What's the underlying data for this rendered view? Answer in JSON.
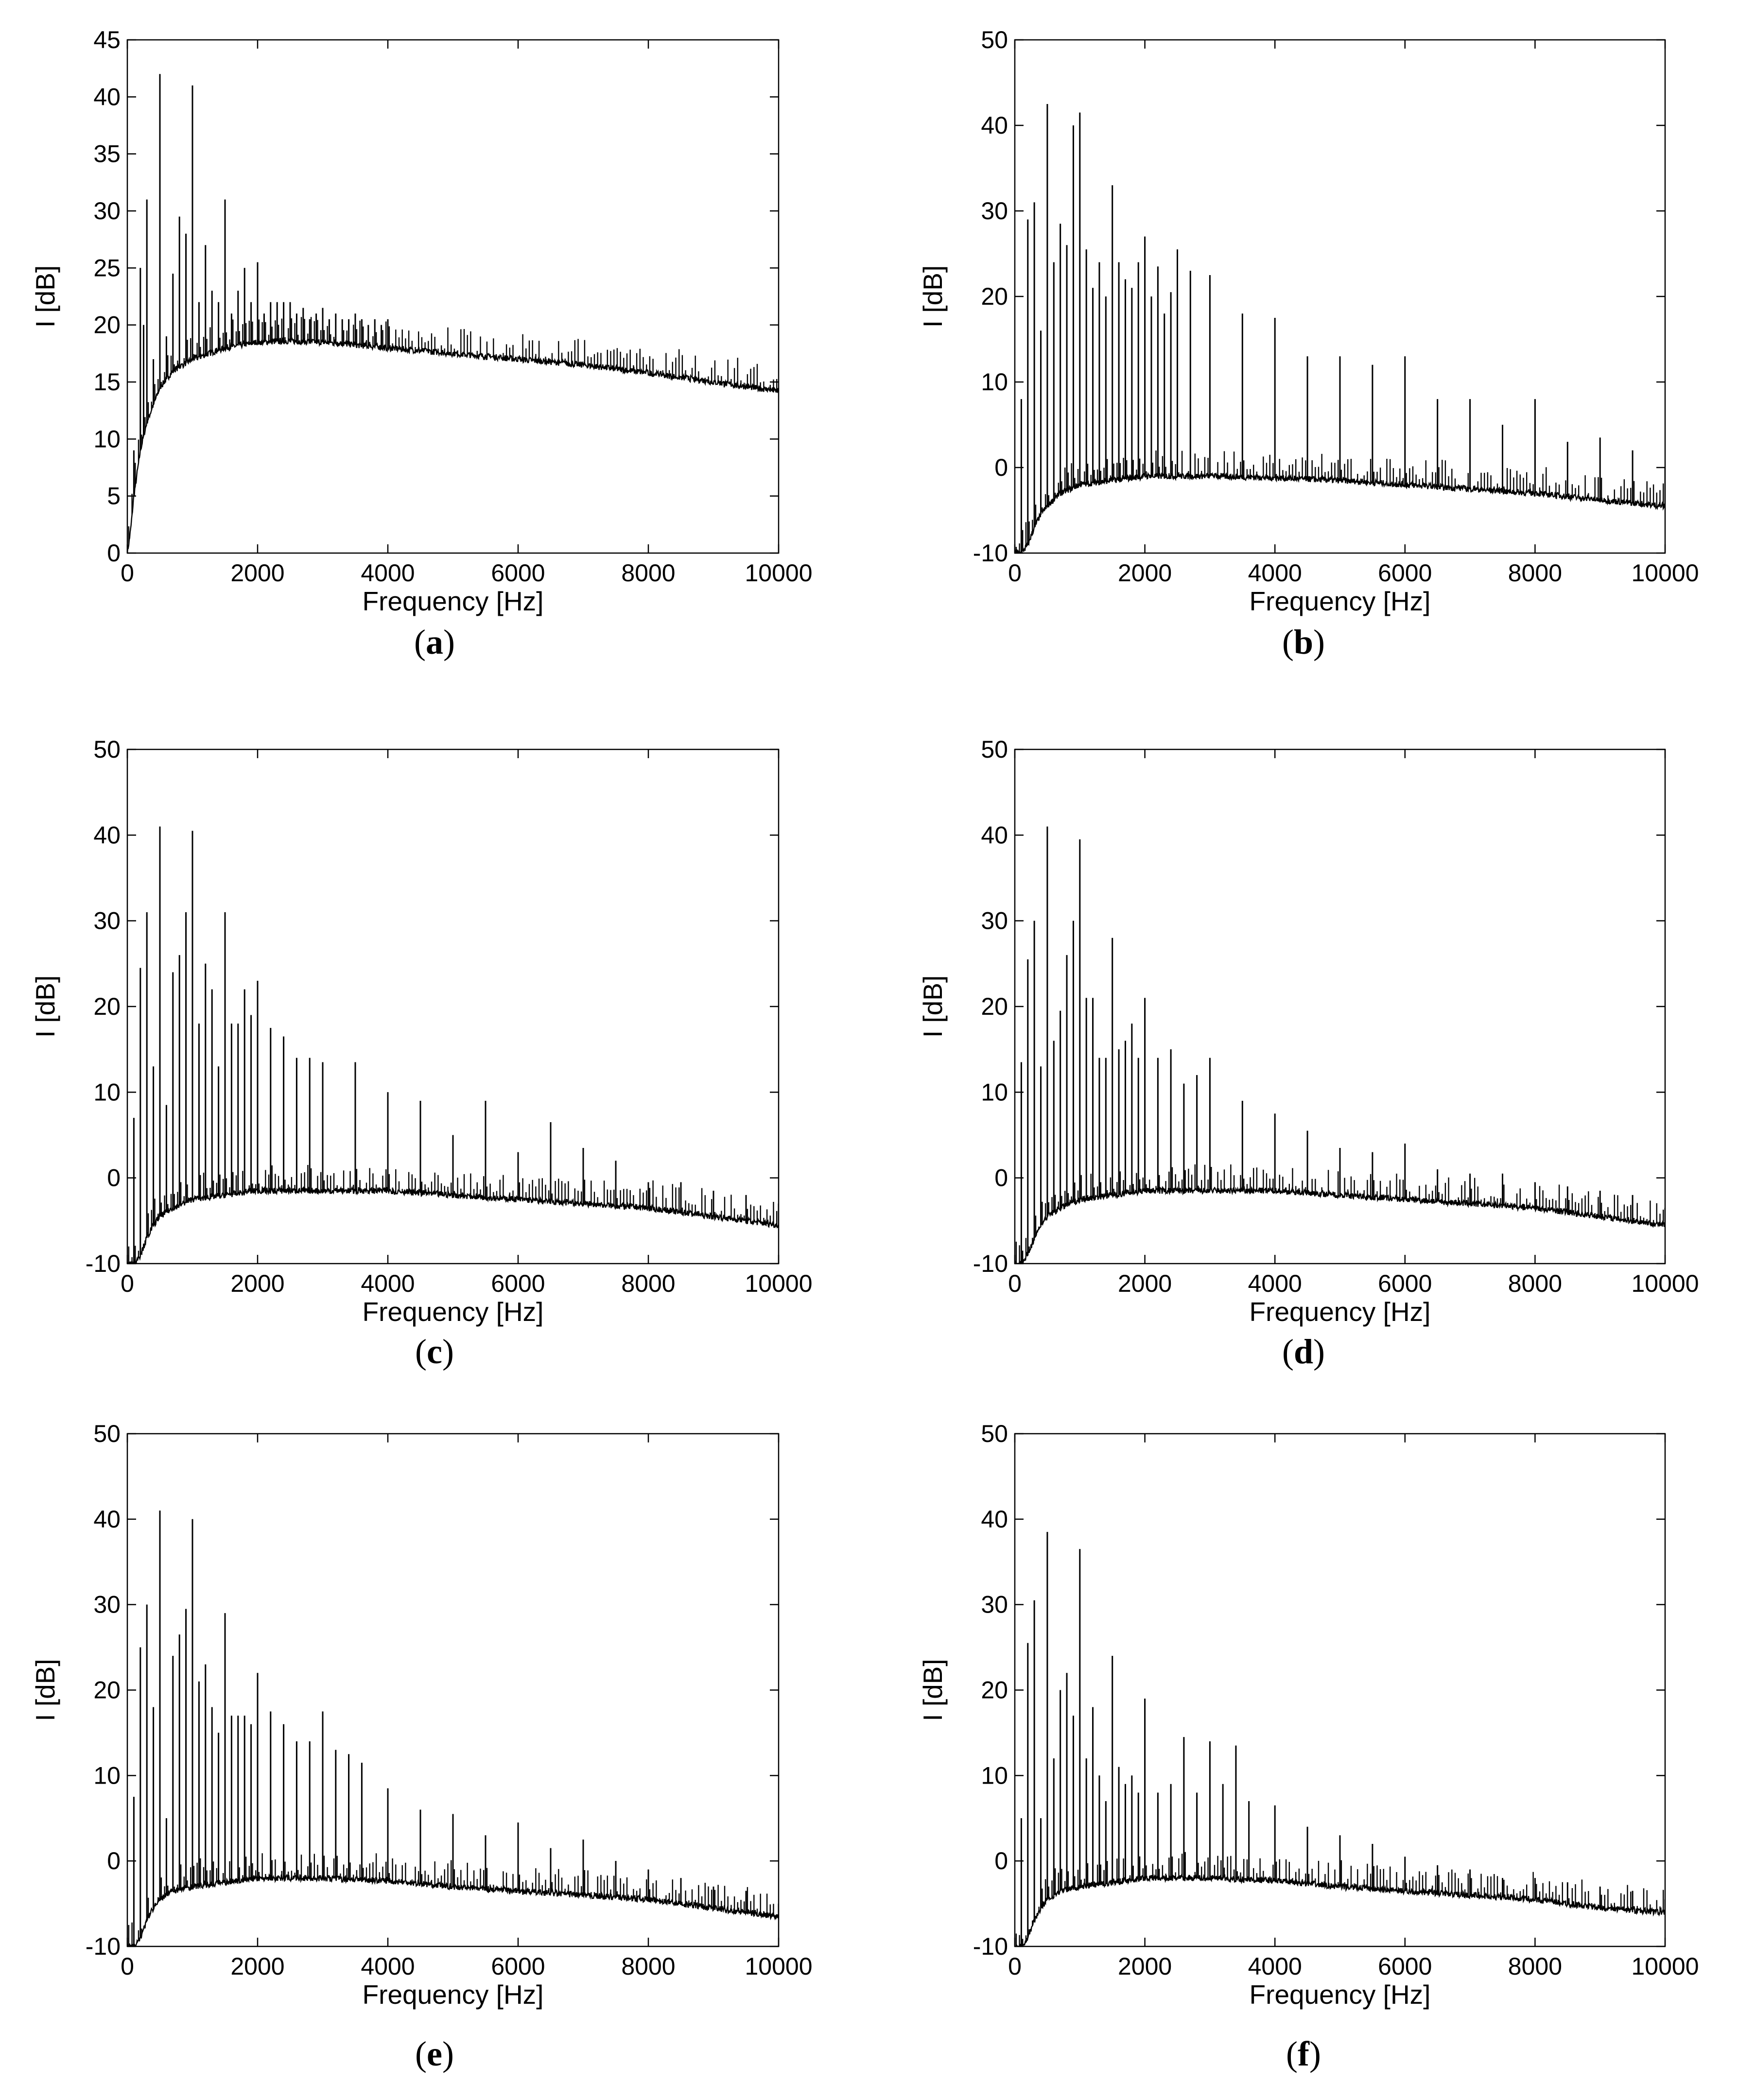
{
  "figure": {
    "panels": [
      {
        "caption_open": "(",
        "caption_letter": "a",
        "caption_close": ")"
      },
      {
        "caption_open": "(",
        "caption_letter": "b",
        "caption_close": ")"
      },
      {
        "caption_open": "(",
        "caption_letter": "c",
        "caption_close": ")"
      },
      {
        "caption_open": "(",
        "caption_letter": "d",
        "caption_close": ")"
      },
      {
        "caption_open": "(",
        "caption_letter": "e",
        "caption_close": ")"
      },
      {
        "caption_open": "(",
        "caption_letter": "f",
        "caption_close": ")"
      }
    ]
  },
  "chart_data": [
    {
      "type": "line",
      "xlabel": "Frequency [Hz]",
      "ylabel": "I [dB]",
      "xlim": [
        0,
        10000
      ],
      "ylim": [
        0,
        45
      ],
      "xticks": [
        0,
        2000,
        4000,
        6000,
        8000,
        10000
      ],
      "yticks": [
        0,
        5,
        10,
        15,
        20,
        25,
        30,
        35,
        40,
        45
      ],
      "grid": false,
      "series": [
        {
          "color": "#000000",
          "noise_floor": {
            "x": [
              0,
              50,
              100,
              150,
              200,
              300,
              400,
              500,
              700,
              1000,
              1500,
              2000,
              2500,
              3000,
              4000,
              5000,
              6000,
              7000,
              8000,
              9000,
              10000
            ],
            "y": [
              0,
              2,
              5,
              7,
              9,
              11.5,
              13,
              14.5,
              16,
              17,
              18,
              18.5,
              18.6,
              18.5,
              18,
              17.5,
              17,
              16.5,
              15.8,
              15,
              14.2
            ]
          },
          "peaks": {
            "x": [
              100,
              200,
              250,
              300,
              400,
              500,
              600,
              700,
              800,
              900,
              1000,
              1100,
              1200,
              1300,
              1400,
              1500,
              1600,
              1700,
              1800,
              1900,
              2000,
              2100,
              2200,
              2300,
              2400,
              2500,
              2600,
              2700,
              2800,
              2900,
              3000,
              3100,
              3200,
              3300,
              3400,
              3500,
              3600,
              3700,
              3800,
              3900,
              4000
            ],
            "y": [
              9,
              25,
              20,
              31,
              17,
              42,
              19,
              24.5,
              29.5,
              28,
              41,
              22,
              27,
              23,
              22,
              31,
              21,
              23,
              25,
              22,
              25.5,
              21,
              22,
              22,
              22,
              22,
              21,
              21.5,
              20.5,
              21,
              21.5,
              20.5,
              21,
              20.5,
              20.5,
              21,
              20.5,
              20,
              20.5,
              20,
              20.5
            ]
          }
        }
      ]
    },
    {
      "type": "line",
      "xlabel": "Frequency [Hz]",
      "ylabel": "I [dB]",
      "xlim": [
        0,
        10000
      ],
      "ylim": [
        -10,
        50
      ],
      "xticks": [
        0,
        2000,
        4000,
        6000,
        8000,
        10000
      ],
      "yticks": [
        -10,
        0,
        10,
        20,
        30,
        40,
        50
      ],
      "grid": false,
      "series": [
        {
          "color": "#000000",
          "noise_floor": {
            "x": [
              0,
              100,
              200,
              300,
              400,
              500,
              700,
              1000,
              1500,
              2000,
              2500,
              3000,
              4000,
              5000,
              6000,
              7000,
              8000,
              9000,
              10000
            ],
            "y": [
              -10,
              -10,
              -9,
              -7,
              -5.5,
              -4.5,
              -3,
              -2,
              -1.5,
              -1,
              -1,
              -1,
              -1.2,
              -1.5,
              -2,
              -2.5,
              -3,
              -3.8,
              -4.5
            ]
          },
          "peaks": {
            "x": [
              100,
              200,
              300,
              400,
              500,
              600,
              700,
              800,
              900,
              1000,
              1100,
              1200,
              1300,
              1400,
              1500,
              1600,
              1700,
              1800,
              1900,
              2000,
              2100,
              2200,
              2300,
              2400,
              2500,
              2700,
              3000,
              3500,
              4000,
              4500,
              5000,
              5500,
              6000,
              6500,
              7000,
              7500,
              8000,
              8500,
              9000,
              9500,
              10000
            ],
            "y": [
              8,
              29,
              31,
              16,
              42.5,
              24,
              28.5,
              26,
              40,
              41.5,
              25.5,
              21,
              24,
              20,
              33,
              24,
              22,
              21,
              24,
              27,
              20,
              23.5,
              18,
              20.5,
              25.5,
              23,
              22.5,
              18,
              17.5,
              13,
              13,
              12,
              13,
              8,
              8,
              5,
              8,
              3,
              3.5,
              2,
              0
            ]
          }
        }
      ]
    },
    {
      "type": "line",
      "xlabel": "Frequency [Hz]",
      "ylabel": "I [dB]",
      "xlim": [
        0,
        10000
      ],
      "ylim": [
        -10,
        50
      ],
      "xticks": [
        0,
        2000,
        4000,
        6000,
        8000,
        10000
      ],
      "yticks": [
        -10,
        0,
        10,
        20,
        30,
        40,
        50
      ],
      "grid": false,
      "series": [
        {
          "color": "#000000",
          "noise_floor": {
            "x": [
              0,
              100,
              200,
              300,
              400,
              500,
              700,
              1000,
              1500,
              2000,
              2500,
              3000,
              4000,
              5000,
              6000,
              7000,
              8000,
              9000,
              10000
            ],
            "y": [
              -10,
              -10,
              -9,
              -7,
              -5.5,
              -4.5,
              -3.5,
              -2.5,
              -2,
              -1.5,
              -1.5,
              -1.5,
              -1.5,
              -2,
              -2.5,
              -3,
              -3.5,
              -4.5,
              -5.5
            ]
          },
          "peaks": {
            "x": [
              100,
              200,
              300,
              400,
              500,
              600,
              700,
              800,
              900,
              1000,
              1100,
              1200,
              1300,
              1400,
              1500,
              1600,
              1700,
              1800,
              1900,
              2000,
              2200,
              2400,
              2600,
              2800,
              3000,
              3500,
              4000,
              4500,
              5000,
              5500,
              6000,
              6500,
              7000,
              7500,
              8000,
              8500,
              9000,
              9500,
              10000
            ],
            "y": [
              7,
              24.5,
              31,
              13,
              41,
              8.5,
              24,
              26,
              31,
              40.5,
              18,
              25,
              22,
              13,
              31,
              18,
              18,
              22,
              19,
              23,
              17.5,
              16.5,
              14,
              14,
              13.5,
              13.5,
              10,
              9,
              5,
              9,
              3,
              6.5,
              3.5,
              2,
              -0.5,
              -0.5,
              -1.5,
              -2,
              -3
            ]
          }
        }
      ]
    },
    {
      "type": "line",
      "xlabel": "Frequency [Hz]",
      "ylabel": "I [dB]",
      "xlim": [
        0,
        10000
      ],
      "ylim": [
        -10,
        50
      ],
      "xticks": [
        0,
        2000,
        4000,
        6000,
        8000,
        10000
      ],
      "yticks": [
        -10,
        0,
        10,
        20,
        30,
        40,
        50
      ],
      "grid": false,
      "series": [
        {
          "color": "#000000",
          "noise_floor": {
            "x": [
              0,
              100,
              200,
              300,
              400,
              500,
              700,
              1000,
              1500,
              2000,
              2500,
              3000,
              4000,
              5000,
              6000,
              7000,
              8000,
              9000,
              10000
            ],
            "y": [
              -10,
              -10,
              -9,
              -7,
              -5.5,
              -4.5,
              -3.5,
              -2.5,
              -2,
              -1.5,
              -1.5,
              -1.5,
              -1.5,
              -2,
              -2.5,
              -3,
              -3.5,
              -4.5,
              -5.5
            ]
          },
          "peaks": {
            "x": [
              100,
              200,
              300,
              400,
              500,
              600,
              700,
              800,
              900,
              1000,
              1100,
              1200,
              1300,
              1400,
              1500,
              1600,
              1700,
              1800,
              1900,
              2000,
              2200,
              2400,
              2600,
              2800,
              3000,
              3500,
              4000,
              4500,
              5000,
              5500,
              6000,
              6500,
              7000,
              7500,
              8000,
              8500,
              9000,
              9500,
              10000
            ],
            "y": [
              13.5,
              25.5,
              30,
              13,
              41,
              16,
              19.5,
              26,
              30,
              39.5,
              21,
              21,
              14,
              14,
              28,
              15,
              16,
              18,
              14,
              21,
              14,
              15,
              11,
              12,
              14,
              9,
              7.5,
              5.5,
              3.5,
              3,
              4,
              1,
              0.5,
              0.5,
              -0.5,
              -1,
              -1.5,
              -2,
              -3.5
            ]
          }
        }
      ]
    },
    {
      "type": "line",
      "xlabel": "Frequency [Hz]",
      "ylabel": "I [dB]",
      "xlim": [
        0,
        10000
      ],
      "ylim": [
        -10,
        50
      ],
      "xticks": [
        0,
        2000,
        4000,
        6000,
        8000,
        10000
      ],
      "yticks": [
        -10,
        0,
        10,
        20,
        30,
        40,
        50
      ],
      "grid": false,
      "series": [
        {
          "color": "#000000",
          "noise_floor": {
            "x": [
              0,
              100,
              200,
              300,
              400,
              500,
              700,
              1000,
              1500,
              2000,
              2500,
              3000,
              4000,
              5000,
              6000,
              7000,
              8000,
              9000,
              10000
            ],
            "y": [
              -10,
              -10,
              -9,
              -7,
              -5.5,
              -4.5,
              -3.5,
              -3,
              -2.5,
              -2,
              -2,
              -2,
              -2.3,
              -3,
              -3.5,
              -4,
              -4.5,
              -5.5,
              -6.5
            ]
          },
          "peaks": {
            "x": [
              100,
              200,
              300,
              400,
              500,
              600,
              700,
              800,
              900,
              1000,
              1100,
              1200,
              1300,
              1400,
              1500,
              1600,
              1700,
              1800,
              1900,
              2000,
              2200,
              2400,
              2600,
              2800,
              3000,
              3200,
              3400,
              3600,
              4000,
              4500,
              5000,
              5500,
              6000,
              6500,
              7000,
              7500,
              8000,
              8500,
              9000,
              9500,
              10000
            ],
            "y": [
              7.5,
              25,
              30,
              18,
              41,
              5,
              24,
              26.5,
              29.5,
              40,
              21,
              23,
              18,
              15,
              29,
              17,
              17,
              17,
              16,
              22,
              17.5,
              16,
              14,
              14,
              17.5,
              13,
              12.5,
              11.5,
              8.5,
              6,
              5.5,
              3,
              4.5,
              1.5,
              2.5,
              0,
              -1,
              -2,
              -3,
              -3.5,
              -5
            ]
          }
        }
      ]
    },
    {
      "type": "line",
      "xlabel": "Frequency [Hz]",
      "ylabel": "I [dB]",
      "xlim": [
        0,
        10000
      ],
      "ylim": [
        -10,
        50
      ],
      "xticks": [
        0,
        2000,
        4000,
        6000,
        8000,
        10000
      ],
      "yticks": [
        -10,
        0,
        10,
        20,
        30,
        40,
        50
      ],
      "grid": false,
      "series": [
        {
          "color": "#000000",
          "noise_floor": {
            "x": [
              0,
              100,
              200,
              300,
              400,
              500,
              700,
              1000,
              1500,
              2000,
              2500,
              3000,
              4000,
              5000,
              6000,
              7000,
              8000,
              9000,
              10000
            ],
            "y": [
              -10,
              -10,
              -9,
              -7,
              -5.5,
              -4.5,
              -3.5,
              -3,
              -2.5,
              -2,
              -2,
              -2,
              -2.3,
              -3,
              -3.5,
              -4,
              -4.5,
              -5.5,
              -6
            ]
          },
          "peaks": {
            "x": [
              100,
              200,
              300,
              400,
              500,
              600,
              700,
              800,
              900,
              1000,
              1100,
              1200,
              1300,
              1400,
              1500,
              1600,
              1700,
              1800,
              1900,
              2000,
              2200,
              2400,
              2600,
              2800,
              3000,
              3200,
              3400,
              3600,
              4000,
              4500,
              5000,
              5500,
              6000,
              6500,
              7000,
              7500,
              8000,
              8500,
              9000,
              9500,
              10000
            ],
            "y": [
              5,
              25.5,
              30.5,
              5,
              38.5,
              12,
              20,
              22,
              17,
              36.5,
              12,
              18,
              10,
              7,
              24,
              11,
              9,
              10,
              8,
              19,
              8,
              9,
              14.5,
              8,
              14,
              9,
              13.5,
              7,
              6.5,
              4,
              3,
              2,
              0.5,
              -0.5,
              -1,
              -2,
              -2,
              -2.5,
              -3,
              -3.5,
              -4.5
            ]
          }
        }
      ]
    }
  ]
}
